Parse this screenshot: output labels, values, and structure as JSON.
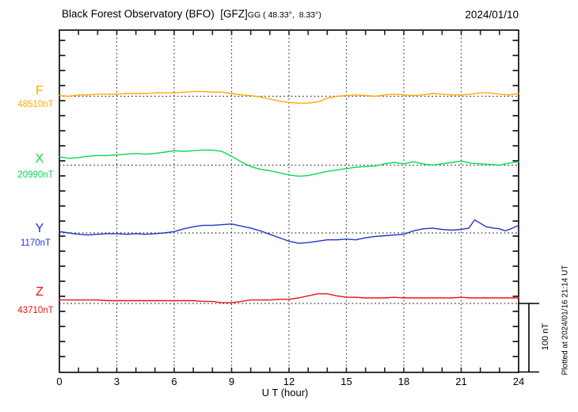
{
  "header": {
    "title_main": "Black Forest Observatory (BFO)  [GFZ]",
    "title_sub": "GG ( 48.33°,  8.33°)",
    "date": "2024/01/10"
  },
  "footer": {
    "plotted_note": "Plotted at 2024/01/16 21:14 UT"
  },
  "chart_data": {
    "type": "line",
    "title": "Magnetogram, Black Forest Observatory (BFO) [GFZ], 2024/01/10",
    "xlabel": "U T (hour)",
    "x_range": [
      0,
      24
    ],
    "x_ticks": [
      0,
      3,
      6,
      9,
      12,
      15,
      18,
      21,
      24
    ],
    "grid_hours": [
      3,
      6,
      9,
      12,
      15,
      18,
      21
    ],
    "grid": "dotted vertical every 3 h, dotted horizontal baseline per component",
    "scale_bar": {
      "label": "100 nT",
      "nT": 100
    },
    "series": [
      {
        "name": "F",
        "baseline_label": "48510nT",
        "baseline_nT": 48510,
        "color": "#ffaa00",
        "y_unit": "nT offset from baseline",
        "points": [
          [
            0,
            1
          ],
          [
            0.5,
            0
          ],
          [
            1,
            2
          ],
          [
            1.5,
            2
          ],
          [
            2,
            3
          ],
          [
            2.5,
            3
          ],
          [
            3,
            3
          ],
          [
            3.5,
            4
          ],
          [
            4,
            4
          ],
          [
            4.5,
            4
          ],
          [
            5,
            5
          ],
          [
            5.5,
            5
          ],
          [
            6,
            5
          ],
          [
            6.5,
            6
          ],
          [
            7,
            7
          ],
          [
            7.5,
            7
          ],
          [
            8,
            6
          ],
          [
            8.5,
            6
          ],
          [
            9,
            4
          ],
          [
            9.5,
            2
          ],
          [
            10,
            1
          ],
          [
            10.5,
            -1
          ],
          [
            11,
            -4
          ],
          [
            11.5,
            -7
          ],
          [
            12,
            -9
          ],
          [
            12.5,
            -10
          ],
          [
            13,
            -10
          ],
          [
            13.5,
            -8
          ],
          [
            14,
            -3
          ],
          [
            14.5,
            0
          ],
          [
            15,
            1
          ],
          [
            15.5,
            2
          ],
          [
            16,
            1
          ],
          [
            16.5,
            0
          ],
          [
            17,
            2
          ],
          [
            17.5,
            3
          ],
          [
            18,
            2
          ],
          [
            18.5,
            1
          ],
          [
            19,
            2
          ],
          [
            19.5,
            4
          ],
          [
            20,
            3
          ],
          [
            20.5,
            2
          ],
          [
            21,
            2
          ],
          [
            21.5,
            3
          ],
          [
            22,
            5
          ],
          [
            22.5,
            5
          ],
          [
            23,
            3
          ],
          [
            23.5,
            2
          ],
          [
            24,
            4
          ]
        ]
      },
      {
        "name": "X",
        "baseline_label": "20990nT",
        "baseline_nT": 20990,
        "color": "#00dd50",
        "y_unit": "nT offset from baseline",
        "points": [
          [
            0,
            12
          ],
          [
            0.5,
            10
          ],
          [
            1,
            11
          ],
          [
            1.5,
            13
          ],
          [
            2,
            14
          ],
          [
            2.5,
            14
          ],
          [
            3,
            15
          ],
          [
            3.5,
            16
          ],
          [
            4,
            17
          ],
          [
            4.5,
            16
          ],
          [
            5,
            17
          ],
          [
            5.5,
            19
          ],
          [
            6,
            21
          ],
          [
            6.5,
            20
          ],
          [
            7,
            21
          ],
          [
            7.5,
            22
          ],
          [
            8,
            22
          ],
          [
            8.5,
            20
          ],
          [
            9,
            13
          ],
          [
            9.5,
            5
          ],
          [
            10,
            -2
          ],
          [
            10.5,
            -6
          ],
          [
            11,
            -8
          ],
          [
            11.5,
            -11
          ],
          [
            12,
            -14
          ],
          [
            12.5,
            -16
          ],
          [
            13,
            -15
          ],
          [
            13.5,
            -12
          ],
          [
            14,
            -9
          ],
          [
            14.5,
            -7
          ],
          [
            15,
            -5
          ],
          [
            15.5,
            -3
          ],
          [
            16,
            -2
          ],
          [
            16.5,
            -1
          ],
          [
            17,
            2
          ],
          [
            17.5,
            4
          ],
          [
            18,
            2
          ],
          [
            18.5,
            5
          ],
          [
            19,
            2
          ],
          [
            19.5,
            0
          ],
          [
            20,
            2
          ],
          [
            20.5,
            4
          ],
          [
            21,
            6
          ],
          [
            21.5,
            3
          ],
          [
            22,
            2
          ],
          [
            22.5,
            1
          ],
          [
            23,
            0
          ],
          [
            23.5,
            3
          ],
          [
            24,
            5
          ]
        ]
      },
      {
        "name": "Y",
        "baseline_label": "1170nT",
        "baseline_nT": 1170,
        "color": "#2233cc",
        "y_unit": "nT offset from baseline",
        "points": [
          [
            0,
            2
          ],
          [
            0.5,
            0
          ],
          [
            1,
            -2
          ],
          [
            1.5,
            -3
          ],
          [
            2,
            -2
          ],
          [
            2.5,
            -1
          ],
          [
            3,
            -1
          ],
          [
            3.5,
            -2
          ],
          [
            4,
            -1
          ],
          [
            4.5,
            -2
          ],
          [
            5,
            -1
          ],
          [
            5.5,
            0
          ],
          [
            6,
            2
          ],
          [
            6.5,
            6
          ],
          [
            7,
            9
          ],
          [
            7.5,
            11
          ],
          [
            8,
            11
          ],
          [
            8.5,
            12
          ],
          [
            9,
            13
          ],
          [
            9.5,
            10
          ],
          [
            10,
            7
          ],
          [
            10.5,
            3
          ],
          [
            11,
            -2
          ],
          [
            11.5,
            -7
          ],
          [
            12,
            -12
          ],
          [
            12.5,
            -15
          ],
          [
            13,
            -14
          ],
          [
            13.5,
            -12
          ],
          [
            14,
            -10
          ],
          [
            14.5,
            -10
          ],
          [
            15,
            -9
          ],
          [
            15.5,
            -10
          ],
          [
            16,
            -7
          ],
          [
            16.5,
            -5
          ],
          [
            17,
            -4
          ],
          [
            17.5,
            -3
          ],
          [
            18,
            -2
          ],
          [
            18.5,
            3
          ],
          [
            19,
            6
          ],
          [
            19.5,
            7
          ],
          [
            20,
            5
          ],
          [
            20.5,
            4
          ],
          [
            21,
            5
          ],
          [
            21.4,
            7
          ],
          [
            21.7,
            19
          ],
          [
            22,
            14
          ],
          [
            22.3,
            9
          ],
          [
            22.7,
            7
          ],
          [
            23,
            6
          ],
          [
            23.3,
            3
          ],
          [
            23.6,
            6
          ],
          [
            24,
            11
          ]
        ]
      },
      {
        "name": "Z",
        "baseline_label": "43710nT",
        "baseline_nT": 43710,
        "color": "#ee1111",
        "y_unit": "nT offset from baseline",
        "points": [
          [
            0,
            5
          ],
          [
            0.5,
            5
          ],
          [
            1,
            5
          ],
          [
            1.5,
            5
          ],
          [
            2,
            5
          ],
          [
            2.5,
            4
          ],
          [
            3,
            4
          ],
          [
            3.5,
            4
          ],
          [
            4,
            4
          ],
          [
            4.5,
            4
          ],
          [
            5,
            4
          ],
          [
            5.5,
            4
          ],
          [
            6,
            4
          ],
          [
            6.5,
            4
          ],
          [
            7,
            4
          ],
          [
            7.5,
            3
          ],
          [
            8,
            3
          ],
          [
            8.5,
            1
          ],
          [
            9,
            1
          ],
          [
            9.5,
            3
          ],
          [
            10,
            5
          ],
          [
            10.5,
            5
          ],
          [
            11,
            5
          ],
          [
            11.5,
            6
          ],
          [
            12,
            6
          ],
          [
            12.5,
            8
          ],
          [
            13,
            11
          ],
          [
            13.5,
            14
          ],
          [
            14,
            14
          ],
          [
            14.5,
            11
          ],
          [
            15,
            9
          ],
          [
            15.5,
            9
          ],
          [
            16,
            8
          ],
          [
            16.5,
            8
          ],
          [
            17,
            8
          ],
          [
            17.5,
            9
          ],
          [
            18,
            8
          ],
          [
            18.5,
            8
          ],
          [
            19,
            8
          ],
          [
            19.5,
            8
          ],
          [
            20,
            8
          ],
          [
            20.5,
            8
          ],
          [
            21,
            9
          ],
          [
            21.5,
            8
          ],
          [
            22,
            8
          ],
          [
            22.5,
            8
          ],
          [
            23,
            8
          ],
          [
            23.5,
            8
          ],
          [
            24,
            8
          ]
        ]
      }
    ]
  }
}
